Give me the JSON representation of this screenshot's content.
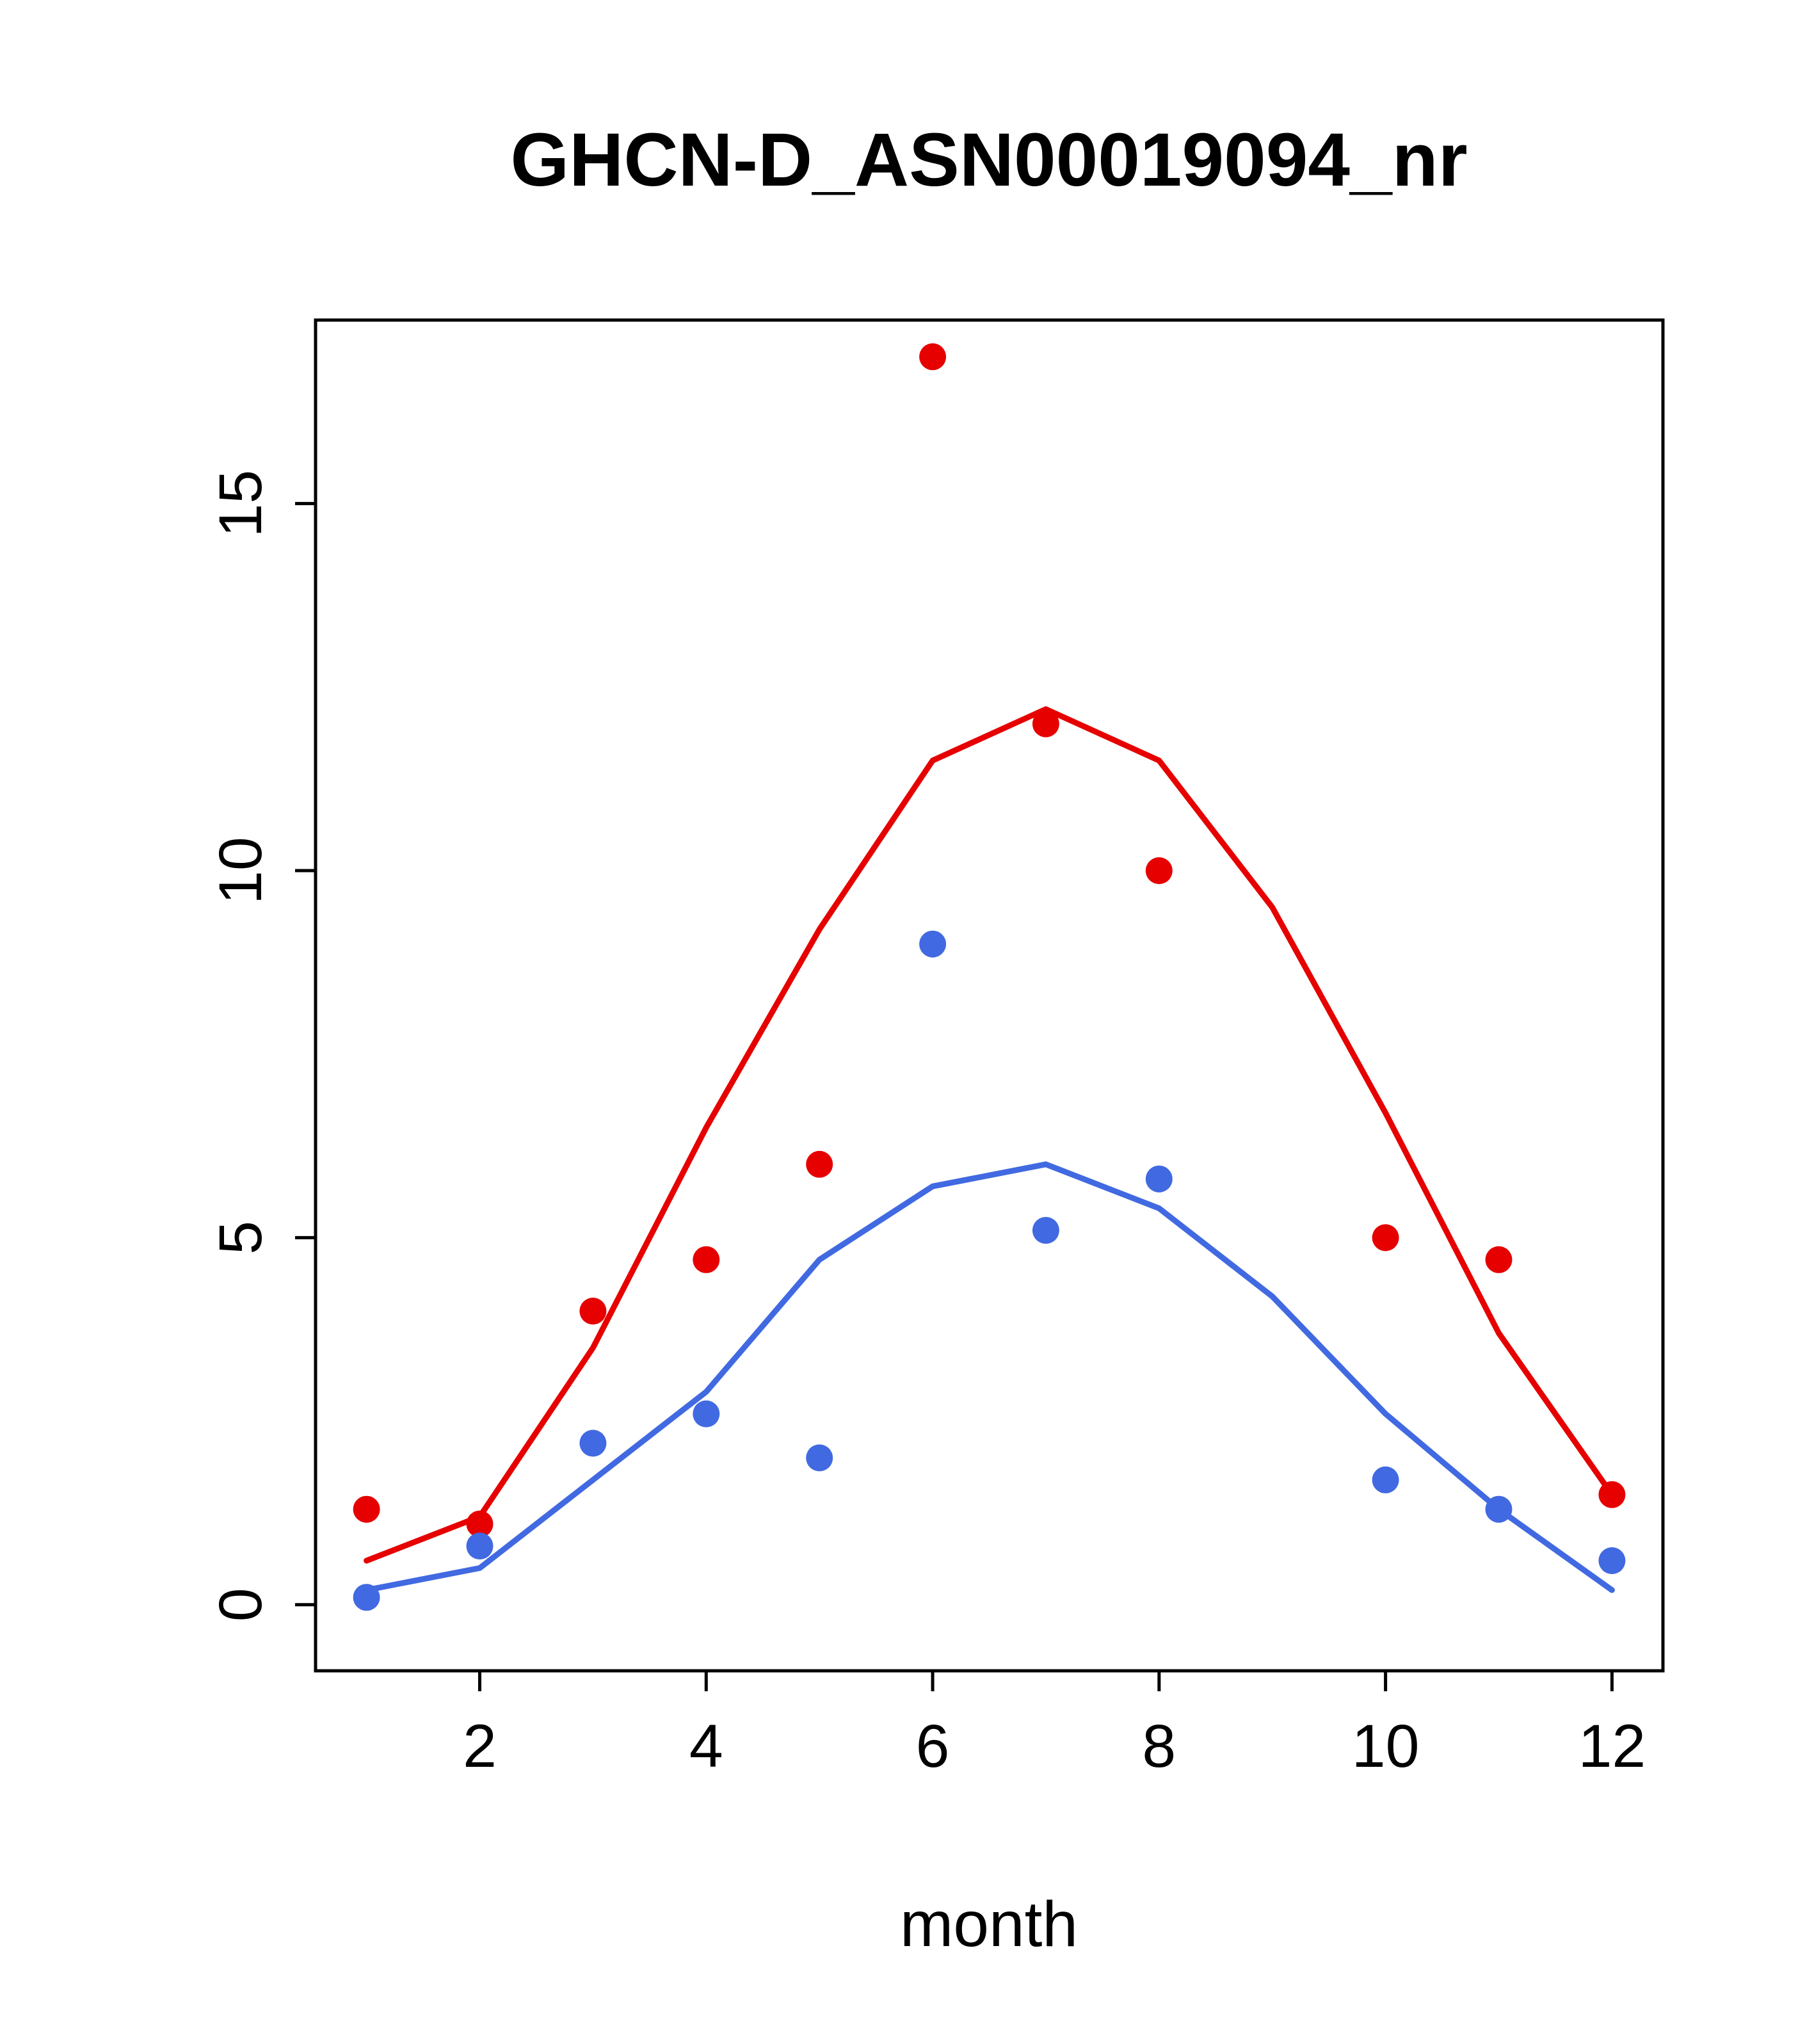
{
  "chart_data": {
    "type": "line",
    "title": "GHCN-D_ASN00019094_nr",
    "xlabel": "month",
    "ylabel": "",
    "x": [
      1,
      2,
      3,
      4,
      5,
      6,
      7,
      8,
      9,
      10,
      11,
      12
    ],
    "xlim": [
      0.55,
      12.45
    ],
    "ylim": [
      -0.9,
      17.5
    ],
    "xticks": [
      2,
      4,
      6,
      8,
      10,
      12
    ],
    "yticks": [
      0,
      5,
      10,
      15
    ],
    "grid": false,
    "legend": "none",
    "series": [
      {
        "name": "red-line",
        "style": "line",
        "color": "#e60000",
        "values": [
          0.6,
          1.2,
          3.5,
          6.5,
          9.2,
          11.5,
          12.2,
          11.5,
          9.5,
          6.7,
          3.7,
          1.5
        ]
      },
      {
        "name": "blue-line",
        "style": "line",
        "color": "#4169e1",
        "values": [
          0.2,
          0.5,
          1.7,
          2.9,
          4.7,
          5.7,
          6.0,
          5.4,
          4.2,
          2.6,
          1.3,
          0.2
        ]
      },
      {
        "name": "red-points",
        "style": "points",
        "color": "#e60000",
        "values": [
          1.3,
          1.1,
          4.0,
          4.7,
          6.0,
          17.0,
          12.0,
          10.0,
          null,
          5.0,
          4.7,
          1.5
        ]
      },
      {
        "name": "blue-points",
        "style": "points",
        "color": "#4169e1",
        "values": [
          0.1,
          0.8,
          2.2,
          2.6,
          2.0,
          9.0,
          5.1,
          5.8,
          null,
          1.7,
          1.3,
          0.6
        ]
      }
    ]
  }
}
